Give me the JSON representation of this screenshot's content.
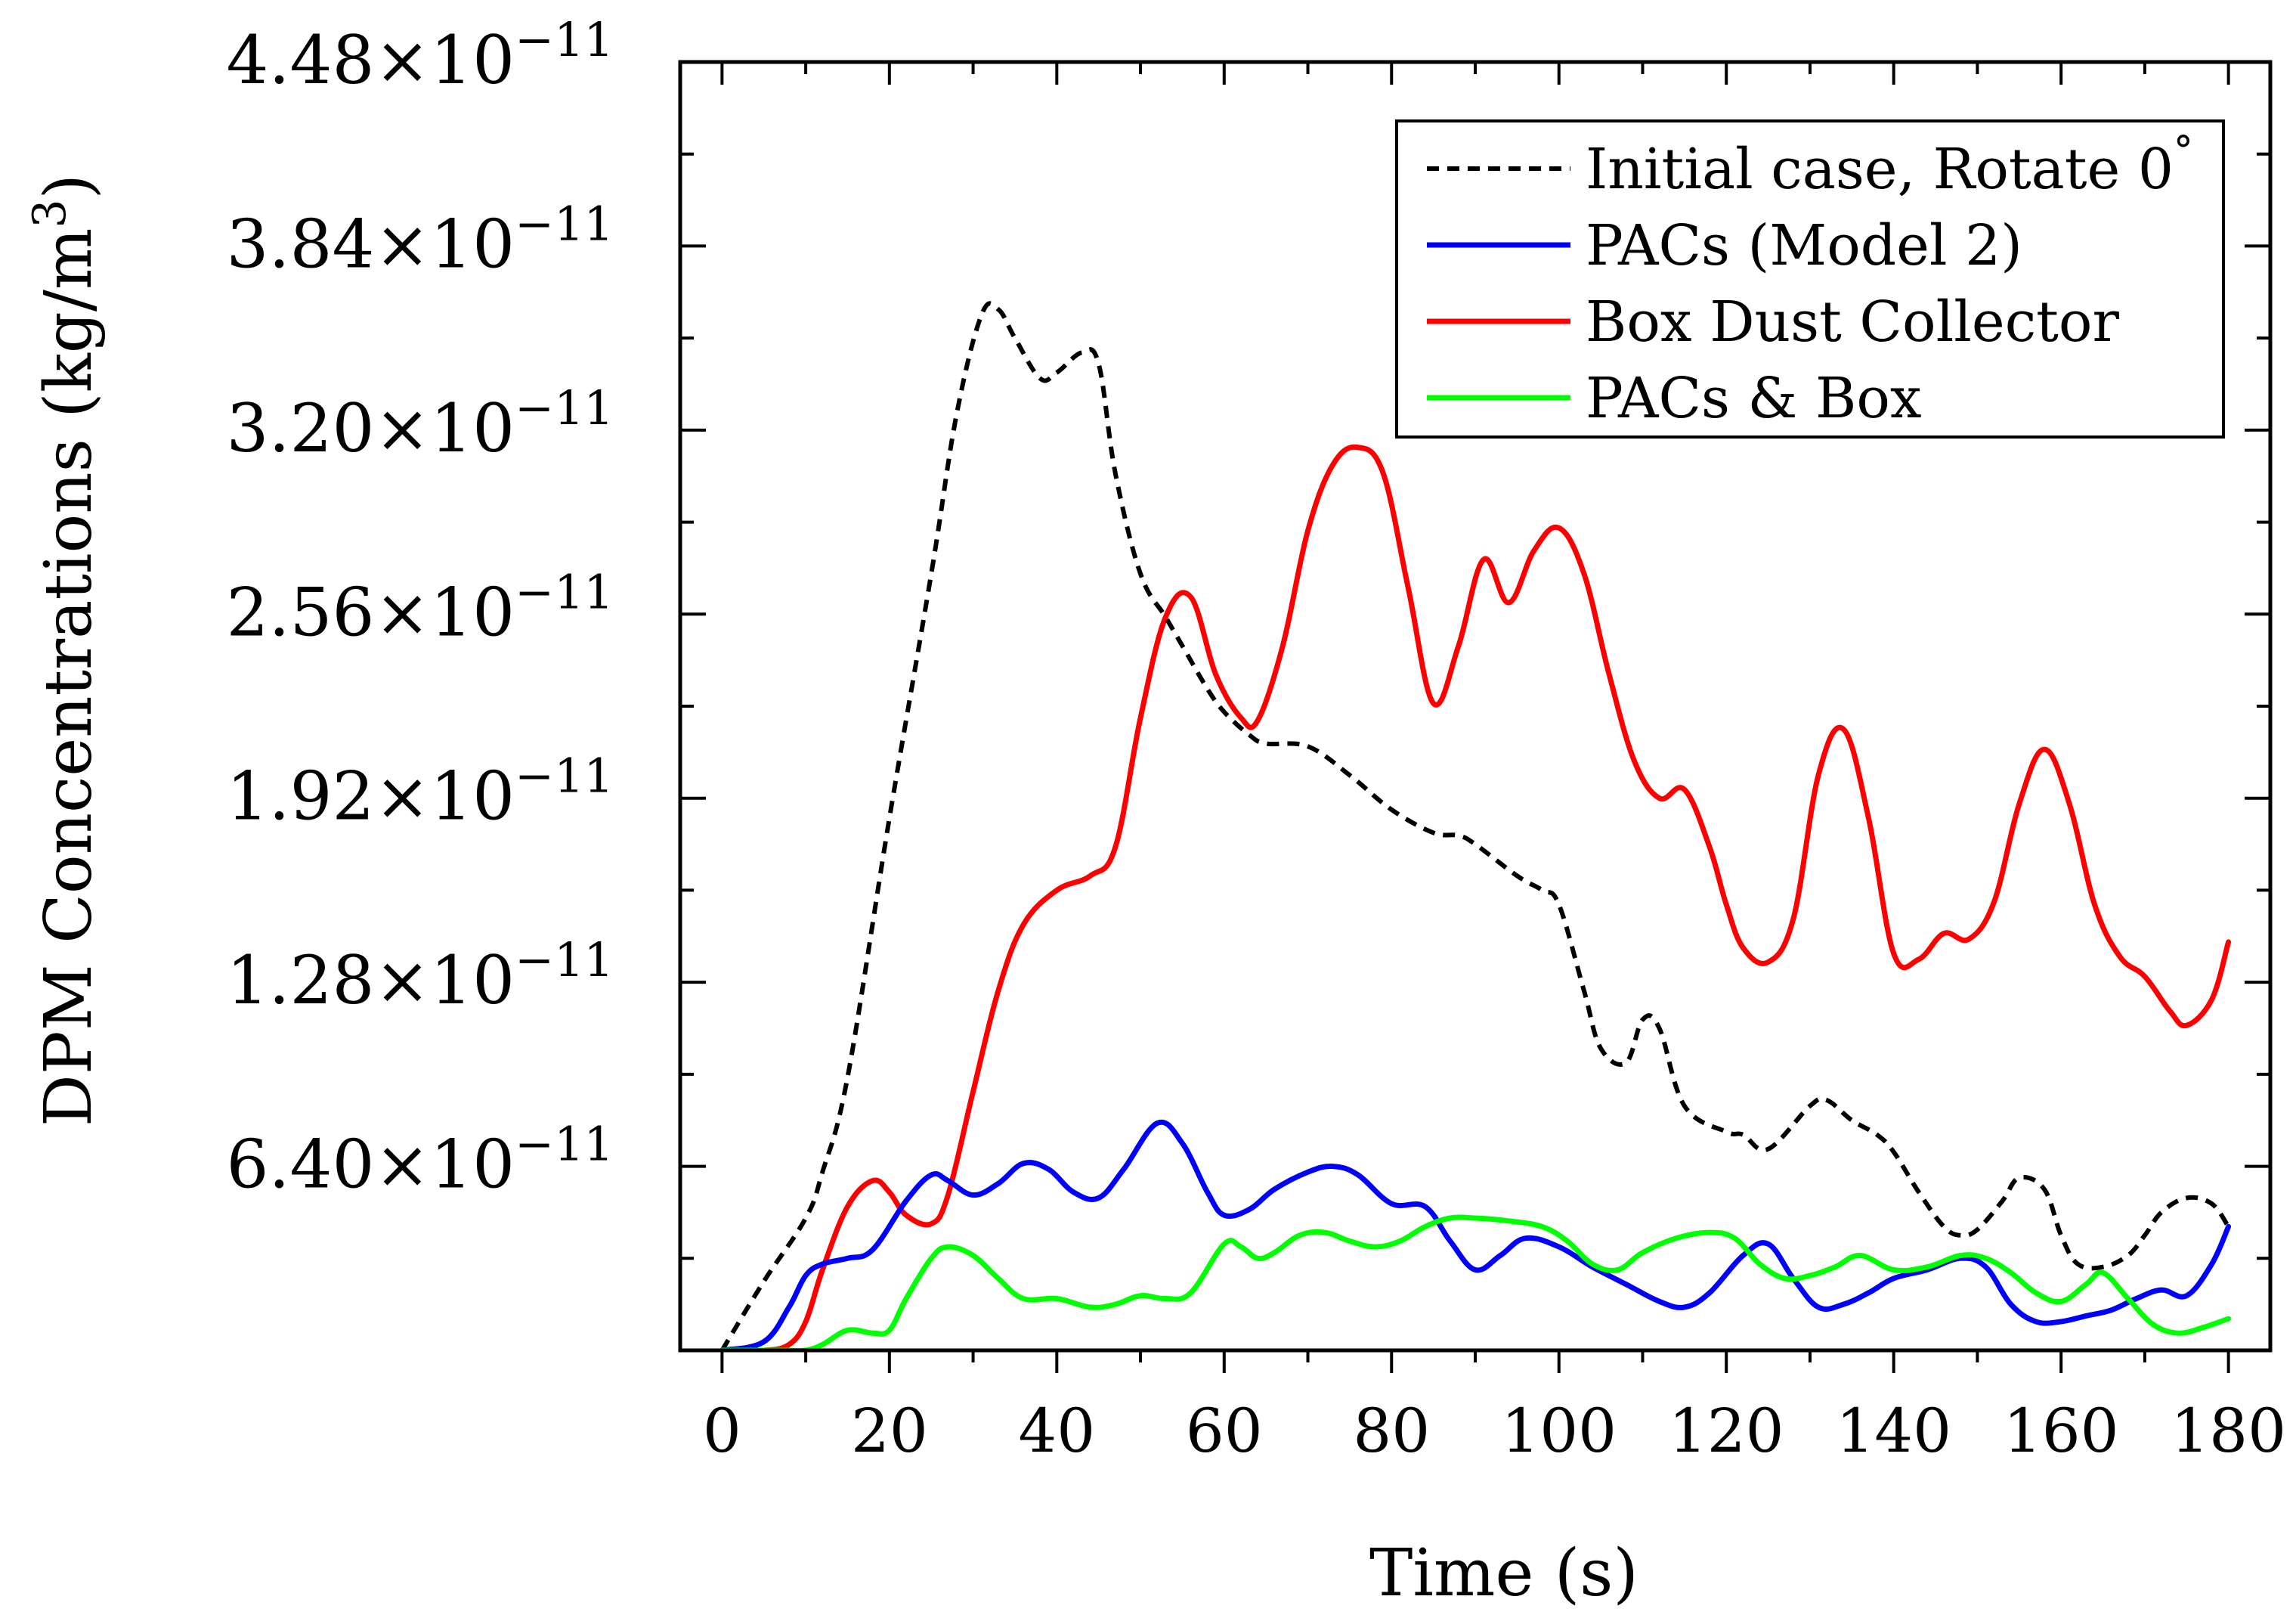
{
  "chart_data": {
    "type": "line",
    "title": "",
    "xlabel": "Time (s)",
    "ylabel": "DPM Concentrations (kg/m",
    "ylabel_sup": "3",
    "ylabel_tail": ")",
    "xlim": [
      -5,
      185
    ],
    "ylim": [
      0,
      44.8
    ],
    "x_ticks": [
      0,
      20,
      40,
      60,
      80,
      100,
      120,
      140,
      160,
      180
    ],
    "x_tick_labels": [
      "0",
      "20",
      "40",
      "60",
      "80",
      "100",
      "120",
      "140",
      "160",
      "180"
    ],
    "y_ticks": [
      6.4,
      12.8,
      19.2,
      25.6,
      32.0,
      38.4,
      44.8
    ],
    "y_tick_labels": [
      {
        "mantissa": "6.40",
        "base": "10",
        "exp": "−11"
      },
      {
        "mantissa": "1.28",
        "base": "10",
        "exp": "−11"
      },
      {
        "mantissa": "1.92",
        "base": "10",
        "exp": "−11"
      },
      {
        "mantissa": "2.56",
        "base": "10",
        "exp": "−11"
      },
      {
        "mantissa": "3.20",
        "base": "10",
        "exp": "−11"
      },
      {
        "mantissa": "3.84",
        "base": "10",
        "exp": "−11"
      },
      {
        "mantissa": "4.48",
        "base": "10",
        "exp": "−11"
      }
    ],
    "y_minor_step": 3.2,
    "x_minor_step": 10,
    "times_symbol": "×",
    "grid": false,
    "legend_position": "top-right",
    "series": [
      {
        "name": "Initial case, Rotate 0",
        "name_sup": "°",
        "color": "#000000",
        "dashed": true,
        "x": [
          0,
          5,
          10,
          12,
          15,
          20,
          25,
          28,
          31,
          33,
          35,
          38,
          40,
          43,
          45,
          47,
          50,
          53,
          55,
          58,
          60,
          63,
          65,
          70,
          75,
          80,
          85,
          88,
          90,
          95,
          98,
          100,
          103,
          105,
          108,
          110,
          112,
          115,
          120,
          122,
          125,
          130,
          132,
          135,
          138,
          140,
          143,
          146,
          148,
          150,
          153,
          155,
          158,
          160,
          162,
          165,
          168,
          170,
          172,
          175,
          178,
          180
        ],
        "y": [
          0,
          2.4,
          4.6,
          6.2,
          9.5,
          18.5,
          27,
          32.5,
          36.0,
          36.2,
          35.2,
          33.8,
          34.0,
          34.7,
          34.3,
          30.5,
          27.0,
          25.5,
          24.5,
          23.0,
          22.2,
          21.4,
          21.1,
          21.0,
          20.0,
          18.8,
          18.0,
          17.9,
          17.6,
          16.5,
          16.0,
          15.5,
          12.5,
          10.5,
          10.0,
          11.5,
          11.2,
          8.5,
          7.6,
          7.5,
          7.0,
          8.5,
          8.7,
          8.0,
          7.5,
          6.9,
          5.5,
          4.3,
          4.0,
          4.2,
          5.2,
          6.0,
          5.6,
          4.0,
          3.0,
          2.9,
          3.3,
          4.0,
          4.8,
          5.3,
          5.1,
          4.3
        ]
      },
      {
        "name": "PACs (Model 2)",
        "color": "#0000ff",
        "dashed": false,
        "x": [
          0,
          5,
          8,
          10,
          12,
          15,
          18,
          22,
          25,
          27,
          30,
          33,
          36,
          39,
          42,
          45,
          48,
          52,
          55,
          58,
          60,
          63,
          66,
          70,
          73,
          76,
          80,
          84,
          87,
          90,
          93,
          96,
          100,
          104,
          108,
          112,
          115,
          118,
          122,
          125,
          128,
          131,
          134,
          137,
          140,
          144,
          148,
          151,
          154,
          157,
          160,
          163,
          166,
          169,
          172,
          175,
          178,
          180
        ],
        "y": [
          0,
          0.3,
          1.5,
          2.6,
          3.0,
          3.2,
          3.5,
          5.2,
          6.1,
          5.9,
          5.4,
          5.8,
          6.5,
          6.3,
          5.5,
          5.3,
          6.3,
          7.9,
          7.2,
          5.5,
          4.7,
          4.9,
          5.6,
          6.2,
          6.4,
          6.1,
          5.1,
          5.0,
          3.8,
          2.8,
          3.3,
          3.9,
          3.6,
          2.9,
          2.3,
          1.7,
          1.5,
          2.0,
          3.3,
          3.7,
          2.5,
          1.5,
          1.6,
          2.0,
          2.5,
          2.8,
          3.2,
          2.9,
          1.6,
          1.0,
          1.0,
          1.2,
          1.4,
          1.8,
          2.1,
          1.9,
          3.0,
          4.3
        ]
      },
      {
        "name": "Box Dust Collector",
        "color": "#ff0000",
        "dashed": false,
        "x": [
          0,
          5,
          8,
          10,
          12,
          15,
          18,
          20,
          22,
          25,
          27,
          30,
          33,
          36,
          40,
          44,
          47,
          50,
          53,
          56,
          59,
          62,
          64,
          67,
          70,
          73,
          76,
          79,
          82,
          85,
          88,
          91,
          94,
          97,
          100,
          103,
          106,
          109,
          112,
          115,
          118,
          120,
          122,
          125,
          128,
          131,
          134,
          137,
          140,
          143,
          146,
          149,
          152,
          155,
          158,
          161,
          164,
          167,
          170,
          173,
          175,
          178,
          180
        ],
        "y": [
          0,
          0,
          0.2,
          1.0,
          2.8,
          5.0,
          5.9,
          5.5,
          4.7,
          4.4,
          5.4,
          9.0,
          12.5,
          14.8,
          16.0,
          16.5,
          17.5,
          22.0,
          25.5,
          26.2,
          23.5,
          22.0,
          21.9,
          24.5,
          28.5,
          30.8,
          31.4,
          30.5,
          26.5,
          22.5,
          24.5,
          27.5,
          26.0,
          27.8,
          28.6,
          27.0,
          23.5,
          20.5,
          19.2,
          19.5,
          17.5,
          15.5,
          14.0,
          13.5,
          15.0,
          20.0,
          21.6,
          18.5,
          13.8,
          13.6,
          14.5,
          14.3,
          15.6,
          19.0,
          20.9,
          19.0,
          15.5,
          13.7,
          13.0,
          11.8,
          11.3,
          12.2,
          14.2
        ]
      },
      {
        "name": "PACs & Box",
        "color": "#00ff00",
        "dashed": false,
        "x": [
          0,
          5,
          8,
          10,
          12,
          15,
          18,
          20,
          22,
          25,
          27,
          30,
          33,
          36,
          40,
          44,
          47,
          50,
          53,
          56,
          60,
          62,
          64,
          66,
          69,
          72,
          75,
          78,
          81,
          84,
          87,
          90,
          94,
          98,
          101,
          104,
          107,
          110,
          114,
          118,
          121,
          124,
          127,
          130,
          133,
          136,
          140,
          144,
          148,
          151,
          154,
          157,
          160,
          163,
          165,
          168,
          171,
          174,
          177,
          180
        ],
        "y": [
          0,
          0,
          0,
          0,
          0.2,
          0.7,
          0.6,
          0.7,
          1.8,
          3.2,
          3.6,
          3.3,
          2.5,
          1.8,
          1.8,
          1.5,
          1.6,
          1.9,
          1.8,
          2.0,
          3.7,
          3.6,
          3.2,
          3.4,
          4.0,
          4.1,
          3.8,
          3.6,
          3.8,
          4.3,
          4.6,
          4.6,
          4.5,
          4.3,
          3.8,
          3.0,
          2.8,
          3.4,
          3.9,
          4.1,
          3.9,
          3.0,
          2.5,
          2.6,
          2.9,
          3.3,
          2.8,
          2.9,
          3.3,
          3.2,
          2.7,
          2.0,
          1.7,
          2.3,
          2.7,
          1.8,
          0.9,
          0.6,
          0.8,
          1.1
        ]
      }
    ]
  }
}
